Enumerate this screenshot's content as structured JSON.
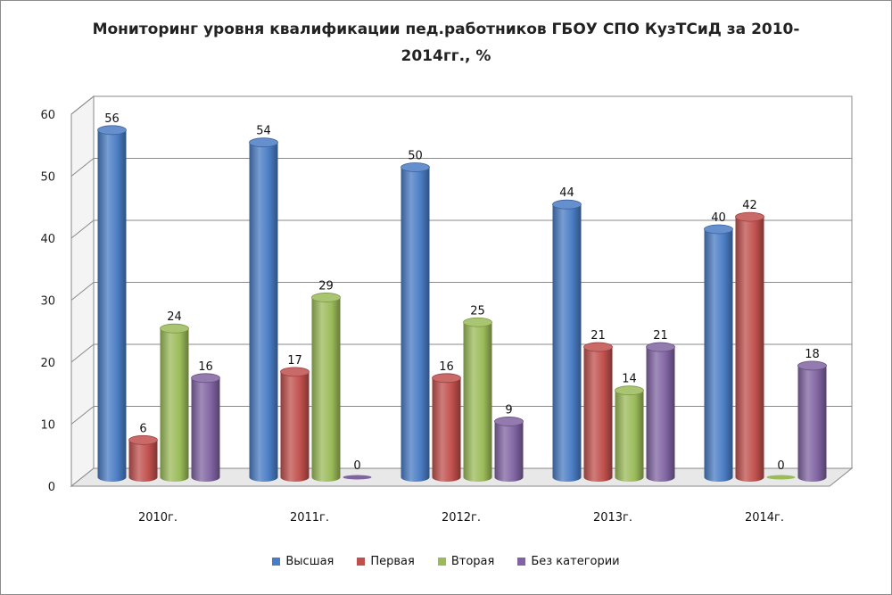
{
  "chart_data": {
    "type": "bar",
    "title": "Мониторинг уровня квалификации пед.работников ГБОУ СПО КузТСиД за 2010-2014гг., %",
    "categories": [
      "2010г.",
      "2011г.",
      "2012г.",
      "2013г.",
      "2014г."
    ],
    "series": [
      {
        "name": "Высшая",
        "color": "#4a7cc4",
        "values": [
          56,
          54,
          50,
          44,
          40
        ]
      },
      {
        "name": "Первая",
        "color": "#c0504d",
        "values": [
          6,
          17,
          16,
          21,
          42
        ]
      },
      {
        "name": "Вторая",
        "color": "#9bbb59",
        "values": [
          24,
          29,
          25,
          14,
          0
        ]
      },
      {
        "name": "Без категории",
        "color": "#8064a2",
        "values": [
          16,
          0,
          9,
          21,
          18
        ]
      }
    ],
    "y_ticks": [
      "0",
      "10",
      "20",
      "30",
      "40",
      "50",
      "60"
    ],
    "ylim": [
      0,
      60
    ],
    "grid": true,
    "legend_position": "bottom"
  }
}
